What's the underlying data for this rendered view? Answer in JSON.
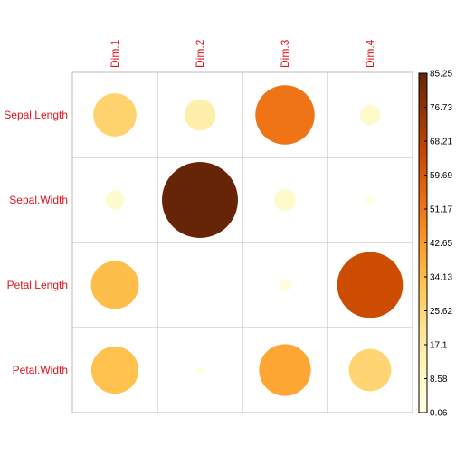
{
  "chart_data": {
    "type": "heatmap",
    "title": "",
    "rows": [
      "Sepal.Length",
      "Sepal.Width",
      "Petal.Length",
      "Petal.Width"
    ],
    "columns": [
      "Dim.1",
      "Dim.2",
      "Dim.3",
      "Dim.4"
    ],
    "values": [
      [
        27.5,
        14.5,
        51.8,
        6.2
      ],
      [
        5.4,
        85.2,
        7.0,
        1.1
      ],
      [
        33.8,
        0.1,
        2.2,
        63.8
      ],
      [
        32.9,
        0.8,
        39.6,
        26.5
      ]
    ],
    "value_range": [
      0.06,
      85.25
    ],
    "legend": {
      "position": "right",
      "ticks": [
        "0.06",
        "8.58",
        "17.1",
        "25.62",
        "34.13",
        "42.65",
        "51.17",
        "59.69",
        "68.21",
        "76.73",
        "85.25"
      ]
    },
    "colors": {
      "label_text": "#e0141e",
      "grid": "#bebebe",
      "scale_low": "#ffffe5",
      "scale_high": "#662506"
    },
    "glyph": "circle",
    "grid": true
  }
}
